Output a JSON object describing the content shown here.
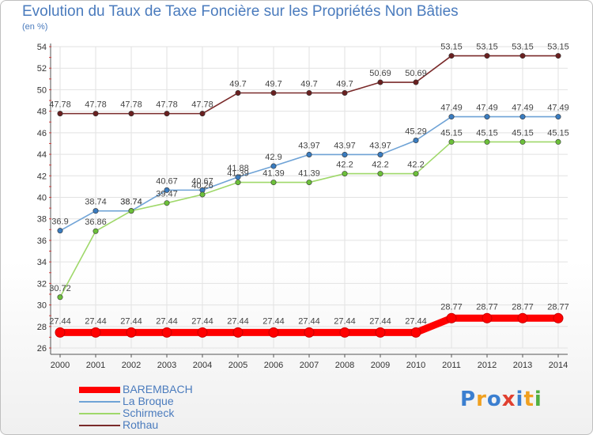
{
  "title": "Evolution du Taux de Taxe Foncière sur les Propriétés Non Bâties",
  "unit_label": "(en %)",
  "logo": {
    "text": "Proxiti",
    "colors": [
      "#3b7fd0",
      "#f0a020",
      "#3b7fd0",
      "#e04030",
      "#3b7fd0",
      "#f0a020",
      "#50b040"
    ]
  },
  "chart_data": {
    "type": "line",
    "x": [
      2000,
      2001,
      2002,
      2003,
      2004,
      2005,
      2006,
      2007,
      2008,
      2009,
      2010,
      2011,
      2012,
      2013,
      2014
    ],
    "ylim": [
      26,
      54
    ],
    "yticks": [
      26,
      28,
      30,
      32,
      34,
      36,
      38,
      40,
      42,
      44,
      46,
      48,
      50,
      52,
      54
    ],
    "grid": true,
    "legend_position": "bottom-left",
    "series": [
      {
        "name": "Rothau",
        "color": "#7a2a2a",
        "point_color": "#6a2020",
        "values": [
          47.78,
          47.78,
          47.78,
          47.78,
          47.78,
          49.7,
          49.7,
          49.7,
          49.7,
          50.69,
          50.69,
          53.15,
          53.15,
          53.15,
          53.15
        ],
        "labels": [
          "47.78",
          "47.78",
          "47.78",
          "47.78",
          "47.78",
          "49.7",
          "49.7",
          "49.7",
          "49.7",
          "50.69",
          "50.69",
          "53.15",
          "53.15",
          "53.15",
          "53.15"
        ]
      },
      {
        "name": "La Broque",
        "color": "#6fa3d6",
        "point_color": "#3a7cc0",
        "values": [
          36.9,
          38.74,
          38.74,
          40.67,
          40.67,
          41.88,
          42.9,
          43.97,
          43.97,
          43.97,
          45.29,
          47.49,
          47.49,
          47.49,
          47.49
        ],
        "labels": [
          "36.9",
          "38.74",
          "38.74",
          "40.67",
          "40.67",
          "41.88",
          "42.9",
          "43.97",
          "43.97",
          "43.97",
          "45.29",
          "47.49",
          "47.49",
          "47.49",
          "47.49"
        ]
      },
      {
        "name": "Schirmeck",
        "color": "#9fd86a",
        "point_color": "#6cc03a",
        "values": [
          30.72,
          36.86,
          38.74,
          39.47,
          40.26,
          41.39,
          41.39,
          41.39,
          42.2,
          42.2,
          42.2,
          45.15,
          45.15,
          45.15,
          45.15
        ],
        "labels": [
          "30.72",
          "36.86",
          "38.74",
          "39.47",
          "40.26",
          "41.39",
          "41.39",
          "41.39",
          "42.2",
          "42.2",
          "42.2",
          "45.15",
          "45.15",
          "45.15",
          "45.15"
        ]
      },
      {
        "name": "BAREMBACH",
        "color": "#ff0000",
        "point_color": "#ff0000",
        "values": [
          27.44,
          27.44,
          27.44,
          27.44,
          27.44,
          27.44,
          27.44,
          27.44,
          27.44,
          27.44,
          27.44,
          28.77,
          28.77,
          28.77,
          28.77
        ],
        "labels": [
          "27.44",
          "27.44",
          "27.44",
          "27.44",
          "27.44",
          "27.44",
          "27.44",
          "27.44",
          "27.44",
          "27.44",
          "27.44",
          "28.77",
          "28.77",
          "28.77",
          "28.77"
        ]
      }
    ],
    "legend": [
      "BAREMBACH",
      "La Broque",
      "Schirmeck",
      "Rothau"
    ]
  }
}
